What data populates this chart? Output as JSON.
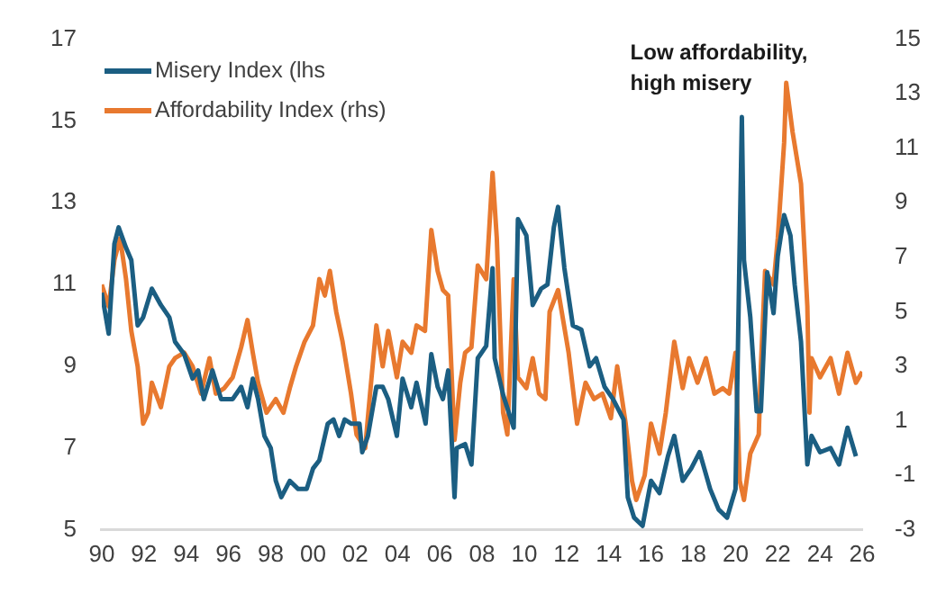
{
  "chart_data": {
    "type": "line",
    "annotations": [
      "Low affordability,\nhigh misery"
    ],
    "legend": "top left",
    "marker": "none",
    "xlim": [
      1990,
      2026
    ],
    "xticks": [
      {
        "value": 1990,
        "label": "90"
      },
      {
        "value": 1992,
        "label": "92"
      },
      {
        "value": 1994,
        "label": "94"
      },
      {
        "value": 1996,
        "label": "96"
      },
      {
        "value": 1998,
        "label": "98"
      },
      {
        "value": 2000,
        "label": "00"
      },
      {
        "value": 2002,
        "label": "02"
      },
      {
        "value": 2004,
        "label": "04"
      },
      {
        "value": 2006,
        "label": "06"
      },
      {
        "value": 2008,
        "label": "08"
      },
      {
        "value": 2010,
        "label": "10"
      },
      {
        "value": 2012,
        "label": "12"
      },
      {
        "value": 2014,
        "label": "14"
      },
      {
        "value": 2016,
        "label": "16"
      },
      {
        "value": 2018,
        "label": "18"
      },
      {
        "value": 2020,
        "label": "20"
      },
      {
        "value": 2022,
        "label": "22"
      },
      {
        "value": 2024,
        "label": "24"
      },
      {
        "value": 2026,
        "label": "26"
      }
    ],
    "ylim": [
      5,
      17
    ],
    "yticks": [
      5,
      7,
      9,
      11,
      13,
      15,
      17
    ],
    "y2lim": [
      -3,
      15
    ],
    "y2ticks": [
      -3,
      -1,
      1,
      3,
      5,
      7,
      9,
      11,
      13,
      15
    ],
    "series": [
      {
        "name": "Misery Index (lhs",
        "color": "#1b5e82",
        "x": [
          1990.0,
          1990.33,
          1990.6,
          1990.8,
          1991.15,
          1991.4,
          1991.7,
          1991.96,
          1992.37,
          1992.8,
          1993.2,
          1993.47,
          1993.9,
          1994.3,
          1994.56,
          1994.83,
          1995.24,
          1995.65,
          1996.2,
          1996.6,
          1996.9,
          1997.15,
          1997.4,
          1997.7,
          1998.0,
          1998.24,
          1998.5,
          1998.9,
          1999.3,
          1999.7,
          2000.0,
          2000.3,
          2000.7,
          2000.97,
          2001.24,
          2001.5,
          2001.8,
          2002.2,
          2002.33,
          2002.6,
          2003.0,
          2003.3,
          2003.56,
          2003.97,
          2004.24,
          2004.65,
          2004.9,
          2005.33,
          2005.6,
          2005.9,
          2006.15,
          2006.4,
          2006.7,
          2006.8,
          2007.2,
          2007.5,
          2007.8,
          2008.2,
          2008.5,
          2008.6,
          2009.0,
          2009.5,
          2009.7,
          2010.1,
          2010.4,
          2010.8,
          2011.1,
          2011.4,
          2011.6,
          2011.9,
          2012.3,
          2012.7,
          2013.1,
          2013.4,
          2013.8,
          2014.2,
          2014.7,
          2014.9,
          2015.2,
          2015.6,
          2016.0,
          2016.4,
          2016.8,
          2017.1,
          2017.5,
          2017.9,
          2018.3,
          2018.8,
          2019.2,
          2019.6,
          2020.0,
          2020.3,
          2020.4,
          2020.7,
          2021.0,
          2021.2,
          2021.5,
          2021.8,
          2022.0,
          2022.3,
          2022.6,
          2022.8,
          2023.1,
          2023.4,
          2023.6,
          2024.0,
          2024.5,
          2024.9,
          2025.3,
          2025.7
        ],
        "values": [
          10.8,
          9.8,
          12.0,
          12.4,
          11.9,
          11.6,
          10.0,
          10.2,
          10.9,
          10.5,
          10.2,
          9.6,
          9.3,
          8.7,
          8.9,
          8.2,
          8.9,
          8.2,
          8.2,
          8.5,
          8.0,
          8.7,
          8.2,
          7.3,
          7.0,
          6.2,
          5.8,
          6.2,
          6.0,
          6.0,
          6.5,
          6.7,
          7.6,
          7.7,
          7.3,
          7.7,
          7.6,
          7.6,
          6.9,
          7.3,
          8.5,
          8.5,
          8.2,
          7.3,
          8.7,
          8.0,
          8.6,
          7.6,
          9.3,
          8.5,
          8.2,
          8.9,
          5.8,
          7.0,
          7.1,
          6.6,
          9.2,
          9.5,
          11.4,
          9.2,
          8.3,
          7.5,
          12.6,
          12.2,
          10.5,
          10.9,
          11.0,
          12.4,
          12.9,
          11.4,
          10.0,
          9.9,
          9.0,
          9.2,
          8.5,
          8.2,
          7.7,
          5.8,
          5.3,
          5.1,
          6.2,
          5.9,
          6.8,
          7.3,
          6.2,
          6.5,
          6.9,
          6.0,
          5.5,
          5.3,
          6.0,
          15.1,
          11.6,
          10.2,
          7.9,
          7.9,
          11.3,
          10.3,
          11.7,
          12.7,
          12.2,
          11.0,
          9.6,
          6.6,
          7.3,
          6.9,
          7.0,
          6.6,
          7.5,
          6.8
        ]
      },
      {
        "name": "Affordability Index (rhs)",
        "color": "#e8792f",
        "axis": "y2",
        "x": [
          1990.0,
          1990.33,
          1990.6,
          1990.87,
          1991.15,
          1991.4,
          1991.7,
          1991.96,
          1992.2,
          1992.37,
          1992.8,
          1993.2,
          1993.47,
          1993.9,
          1994.3,
          1994.7,
          1995.1,
          1995.4,
          1995.8,
          1996.2,
          1996.6,
          1996.9,
          1997.15,
          1997.4,
          1997.8,
          1998.24,
          1998.6,
          1998.9,
          1999.2,
          1999.6,
          2000.0,
          2000.3,
          2000.56,
          2000.8,
          2001.1,
          2001.4,
          2001.8,
          2002.06,
          2002.47,
          2002.7,
          2003.0,
          2003.3,
          2003.56,
          2003.97,
          2004.24,
          2004.65,
          2004.9,
          2005.3,
          2005.6,
          2005.9,
          2006.15,
          2006.4,
          2006.7,
          2006.97,
          2007.2,
          2007.5,
          2007.8,
          2008.2,
          2008.5,
          2008.7,
          2009.0,
          2009.2,
          2009.5,
          2009.7,
          2010.1,
          2010.4,
          2010.7,
          2011.0,
          2011.2,
          2011.6,
          2012.1,
          2012.5,
          2012.9,
          2013.3,
          2013.7,
          2014.1,
          2014.4,
          2014.8,
          2015.1,
          2015.3,
          2015.7,
          2016.0,
          2016.4,
          2016.7,
          2017.1,
          2017.5,
          2017.8,
          2018.2,
          2018.6,
          2019.0,
          2019.4,
          2019.7,
          2020.0,
          2020.2,
          2020.4,
          2020.7,
          2021.1,
          2021.2,
          2021.4,
          2021.8,
          2022.0,
          2022.3,
          2022.4,
          2022.7,
          2023.1,
          2023.4,
          2023.5,
          2023.6,
          2024.0,
          2024.5,
          2024.9,
          2025.3,
          2025.7,
          2026.0
        ],
        "values": [
          6.0,
          5.2,
          6.9,
          7.7,
          6.2,
          4.3,
          3.0,
          0.9,
          1.3,
          2.4,
          1.5,
          3.0,
          3.3,
          3.5,
          3.0,
          2.0,
          3.3,
          2.0,
          2.2,
          2.6,
          3.7,
          4.7,
          3.5,
          2.4,
          1.3,
          1.8,
          1.3,
          2.2,
          3.0,
          3.9,
          4.5,
          6.2,
          5.6,
          6.5,
          5.0,
          3.9,
          2.0,
          0.5,
          0.0,
          2.0,
          4.5,
          3.0,
          4.3,
          2.6,
          3.9,
          3.5,
          4.5,
          4.3,
          8.0,
          6.5,
          5.8,
          5.6,
          0.3,
          2.4,
          3.5,
          3.7,
          6.7,
          6.2,
          10.1,
          7.7,
          1.3,
          0.5,
          6.2,
          2.6,
          2.2,
          3.3,
          2.0,
          1.8,
          5.0,
          5.8,
          3.5,
          0.9,
          2.4,
          1.8,
          2.0,
          1.1,
          3.0,
          0.9,
          -1.2,
          -1.9,
          -1.0,
          0.9,
          -0.2,
          1.3,
          3.9,
          2.2,
          3.3,
          2.4,
          3.3,
          2.0,
          2.2,
          2.0,
          3.5,
          -1.2,
          -1.9,
          -0.2,
          0.5,
          3.0,
          6.5,
          6.0,
          7.7,
          11.2,
          13.4,
          11.6,
          9.7,
          5.2,
          1.3,
          3.3,
          2.6,
          3.3,
          2.0,
          3.5,
          2.4,
          2.8
        ]
      }
    ]
  }
}
